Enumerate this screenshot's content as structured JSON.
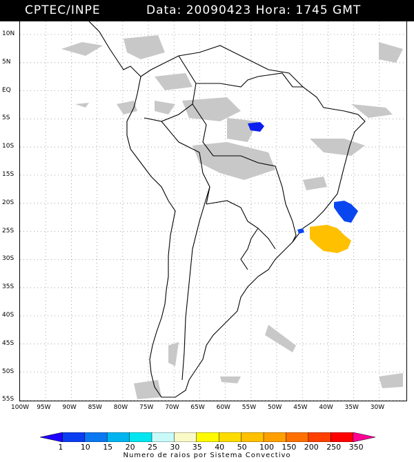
{
  "header": {
    "source": "CPTEC/INPE",
    "info": "Data: 20090423 Hora: 1745 GMT"
  },
  "map": {
    "lat_labels": [
      "10N",
      "5N",
      "EQ",
      "5S",
      "10S",
      "15S",
      "20S",
      "25S",
      "30S",
      "35S",
      "40S",
      "45S",
      "50S",
      "55S"
    ],
    "lon_labels": [
      "100W",
      "95W",
      "90W",
      "85W",
      "80W",
      "75W",
      "70W",
      "65W",
      "60W",
      "55W",
      "50W",
      "45W",
      "40W",
      "35W",
      "30W"
    ],
    "colors": {
      "land_line": "#000000",
      "grid": "#8c8c8c",
      "cloud": "#c8c8c8",
      "ray_1": "#0a1ef0",
      "ray_30": "#0a46f0",
      "ray_40": "#ffc000"
    }
  },
  "legend": {
    "ticks": [
      "1",
      "10",
      "15",
      "20",
      "25",
      "30",
      "35",
      "40",
      "50",
      "100",
      "150",
      "200",
      "250",
      "350"
    ],
    "colors": [
      "#1e00ff",
      "#0a3cf0",
      "#0a78f0",
      "#00b4f0",
      "#00e6f0",
      "#c8fafa",
      "#fafac8",
      "#fffa00",
      "#ffdc00",
      "#ffc000",
      "#ffa000",
      "#ff7000",
      "#ff4000",
      "#ff0000",
      "#ff0096"
    ],
    "title": "Numero de raios por Sistema Convectivo"
  }
}
